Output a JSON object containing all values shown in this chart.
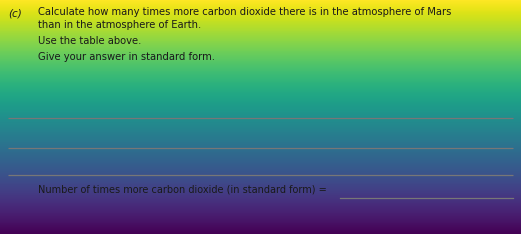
{
  "part_label": "(c)",
  "main_text_line1": "Calculate how many times more carbon dioxide there is in the atmosphere of Mars",
  "main_text_line2": "than in the atmosphere of Earth.",
  "instruction1": "Use the table above.",
  "instruction2": "Give your answer in standard form.",
  "answer_label": "Number of times more carbon dioxide (in standard form) =",
  "bg_color_top": "#b8b8b8",
  "bg_color_bottom": "#d8d8d8",
  "text_color": "#1a1a1a",
  "line_color": "#777777",
  "label_fontsize": 7.5,
  "body_fontsize": 7.2,
  "answer_fontsize": 7.0
}
